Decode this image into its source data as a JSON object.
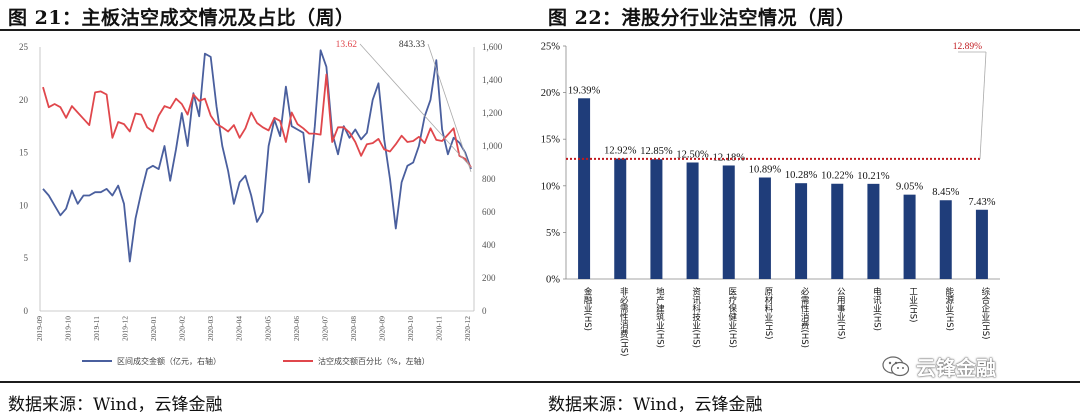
{
  "left_panel": {
    "title": "图 21：主板沽空成交情况及占比（周）",
    "source": "数据来源：Wind，云锋金融",
    "chart_data": {
      "type": "line",
      "left_axis": {
        "ticks": [
          "0",
          "5",
          "10",
          "15",
          "20",
          "25"
        ],
        "range": [
          0,
          25
        ]
      },
      "right_axis": {
        "ticks": [
          "0",
          "200",
          "400",
          "600",
          "800",
          "1,000",
          "1,200",
          "1,400",
          "1,600"
        ],
        "range": [
          0,
          1600
        ]
      },
      "x_ticks": [
        "2019-09",
        "2019-10",
        "2019-11",
        "2019-12",
        "2020-01",
        "2020-02",
        "2020-03",
        "2020-04",
        "2020-05",
        "2020-06",
        "2020-07",
        "2020-08",
        "2020-09",
        "2020-10",
        "2020-11",
        "2020-12"
      ],
      "series": [
        {
          "name": "区间成交金额（亿元，右轴）",
          "axis": "right",
          "color": "#4a5f9e",
          "values": [
            740,
            700,
            640,
            580,
            620,
            730,
            650,
            700,
            700,
            720,
            720,
            740,
            700,
            760,
            650,
            300,
            560,
            720,
            860,
            880,
            860,
            1000,
            790,
            980,
            1200,
            1000,
            1320,
            1180,
            1560,
            1540,
            1240,
            1000,
            850,
            650,
            780,
            820,
            700,
            540,
            600,
            1000,
            1160,
            1060,
            1360,
            1120,
            1100,
            1080,
            780,
            1120,
            1580,
            1480,
            1080,
            950,
            1120,
            1050,
            1100,
            1040,
            1080,
            1280,
            1380,
            1040,
            800,
            500,
            780,
            880,
            900,
            1000,
            1180,
            1280,
            1520,
            1100,
            950,
            1050,
            1020,
            960,
            860
          ]
        },
        {
          "name": "沽空成交额百分比（%，左轴）",
          "axis": "left",
          "color": "#e0474c",
          "values": [
            21.2,
            19.3,
            19.6,
            19.3,
            18.3,
            19.4,
            18.8,
            18.2,
            17.6,
            20.7,
            20.8,
            20.5,
            16.4,
            17.9,
            17.7,
            17.0,
            18.7,
            18.6,
            17.4,
            17.0,
            18.5,
            19.4,
            19.2,
            20.1,
            19.6,
            18.6,
            20.5,
            19.9,
            20.1,
            18.5,
            17.7,
            17.4,
            17.0,
            17.6,
            16.4,
            17.3,
            18.8,
            17.8,
            17.4,
            17.1,
            18.3,
            18.0,
            16.0,
            18.8,
            17.7,
            17.3,
            16.8,
            16.8,
            16.7,
            22.4,
            16.0,
            17.4,
            17.4,
            16.9,
            16.0,
            14.7,
            15.8,
            15.9,
            16.3,
            15.3,
            15.1,
            15.8,
            16.6,
            16.0,
            16.1,
            16.5,
            15.9,
            17.3,
            16.2,
            16.1,
            16.7,
            17.3,
            14.7,
            14.4,
            13.6
          ]
        }
      ],
      "callouts": [
        "13.62",
        "843.33"
      ],
      "legend": [
        "区间成交金额（亿元，右轴）",
        "沽空成交额百分比（%，左轴）"
      ]
    }
  },
  "right_panel": {
    "title": "图 22：港股分行业沽空情况（周）",
    "source": "数据来源：Wind，云锋金融",
    "chart_data": {
      "type": "bar",
      "categories": [
        "金融业(HS)",
        "非必需性消费(HS)",
        "地产建筑业(HS)",
        "资讯科技业(HS)",
        "医疗保健业(HS)",
        "原材料业(HS)",
        "必需性消费(HS)",
        "公用事业(HS)",
        "电讯业(HS)",
        "工业(HS)",
        "能源业(HS)",
        "综合企业(HS)"
      ],
      "values": [
        19.39,
        12.92,
        12.85,
        12.5,
        12.18,
        10.89,
        10.28,
        10.22,
        10.21,
        9.05,
        8.45,
        7.43
      ],
      "labels": [
        "19.39%",
        "12.92%",
        "12.85%",
        "12.50%",
        "12.18%",
        "10.89%",
        "10.28%",
        "10.22%",
        "10.21%",
        "9.05%",
        "8.45%",
        "7.43%"
      ],
      "average": 12.89,
      "average_label": "12.89%",
      "y_ticks": [
        "0%",
        "5%",
        "10%",
        "15%",
        "20%",
        "25%"
      ],
      "ylim": [
        0,
        25
      ],
      "bar_color": "#1f3d7a",
      "avg_color": "#c0191e"
    }
  },
  "watermark": {
    "text": "云锋金融",
    "icon": "wechat-icon"
  }
}
